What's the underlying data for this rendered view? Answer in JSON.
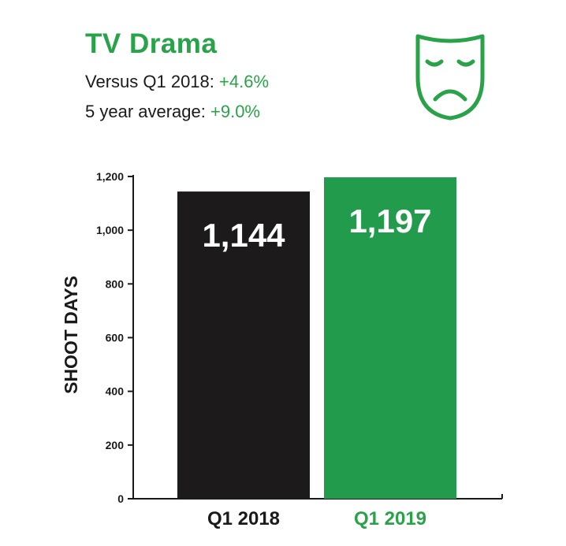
{
  "header": {
    "title": "TV Drama",
    "stats": [
      {
        "label": "Versus Q1 2018:",
        "value": "+4.6%"
      },
      {
        "label": "5 year average:",
        "value": "+9.0%"
      }
    ],
    "icon": "sad-theater-mask-icon"
  },
  "colors": {
    "accent": "#2aa24a",
    "bar_2018": "#1c1a1b",
    "bar_2019": "#239b4c",
    "text": "#1a1a1a"
  },
  "chart_data": {
    "type": "bar",
    "title": "TV Drama",
    "ylabel": "SHOOT DAYS",
    "xlabel": "",
    "ylim": [
      0,
      1200
    ],
    "yticks": [
      0,
      200,
      400,
      600,
      800,
      1000,
      1200
    ],
    "ytick_labels": [
      "0",
      "200",
      "400",
      "600",
      "800",
      "1,000",
      "1,200"
    ],
    "categories": [
      "Q1 2018",
      "Q1 2019"
    ],
    "values": [
      1144,
      1197
    ],
    "value_labels": [
      "1,144",
      "1,197"
    ],
    "grid": false
  }
}
